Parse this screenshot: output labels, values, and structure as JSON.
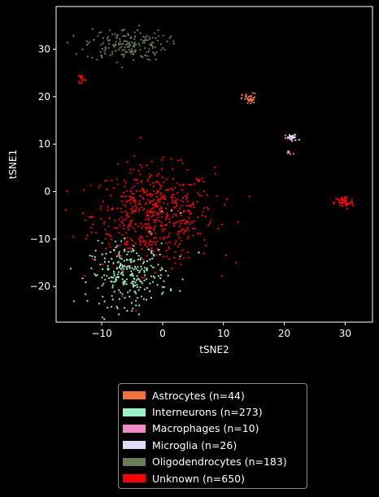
{
  "chart_data": {
    "type": "scatter",
    "xlabel": "tSNE2",
    "ylabel": "tSNE1",
    "xlim": [
      -17.5,
      34.5
    ],
    "ylim": [
      -27.5,
      39
    ],
    "xticks": [
      -10,
      0,
      10,
      20,
      30
    ],
    "yticks": [
      -20,
      -10,
      0,
      10,
      20,
      30
    ],
    "legend_position": "below",
    "series": [
      {
        "name": "Astrocytes (n=44)",
        "color": "#f4713a",
        "n": 44,
        "clusters": [
          {
            "cx": 14.3,
            "cy": 19.5,
            "sx": 0.6,
            "sy": 0.6,
            "n": 40
          },
          {
            "cx": 21.0,
            "cy": 8.0,
            "sx": 0.3,
            "sy": 0.2,
            "n": 4
          }
        ]
      },
      {
        "name": "Interneurons (n=273)",
        "color": "#99f1c6",
        "n": 273,
        "clusters": [
          {
            "cx": -5.5,
            "cy": -17.5,
            "sx": 3.2,
            "sy": 3.2,
            "n": 265
          },
          {
            "cx": -1.0,
            "cy": -8.0,
            "sx": 3.5,
            "sy": 3.5,
            "n": 8
          }
        ]
      },
      {
        "name": "Macrophages (n=10)",
        "color": "#f08ac8",
        "n": 10,
        "clusters": [
          {
            "cx": 20.8,
            "cy": 8.3,
            "sx": 0.3,
            "sy": 0.3,
            "n": 5
          },
          {
            "cx": 20.5,
            "cy": 11.5,
            "sx": 0.3,
            "sy": 0.3,
            "n": 5
          }
        ]
      },
      {
        "name": "Microglia (n=26)",
        "color": "#dedcf6",
        "n": 26,
        "clusters": [
          {
            "cx": 21.3,
            "cy": 11.3,
            "sx": 0.5,
            "sy": 0.4,
            "n": 26
          }
        ]
      },
      {
        "name": "Oligodendrocytes (n=183)",
        "color": "#6b7c56",
        "n": 183,
        "clusters": [
          {
            "cx": -6.0,
            "cy": 31.0,
            "sx": 3.3,
            "sy": 1.7,
            "n": 183
          }
        ]
      },
      {
        "name": "Unknown (n=650)",
        "color": "#ff0000",
        "n": 650,
        "clusters": [
          {
            "cx": -1.5,
            "cy": -5.0,
            "sx": 5.0,
            "sy": 5.0,
            "n": 580
          },
          {
            "cx": 29.8,
            "cy": -2.3,
            "sx": 0.8,
            "sy": 0.7,
            "n": 55
          },
          {
            "cx": -13.3,
            "cy": 23.8,
            "sx": 0.3,
            "sy": 0.6,
            "n": 15
          }
        ]
      }
    ]
  }
}
